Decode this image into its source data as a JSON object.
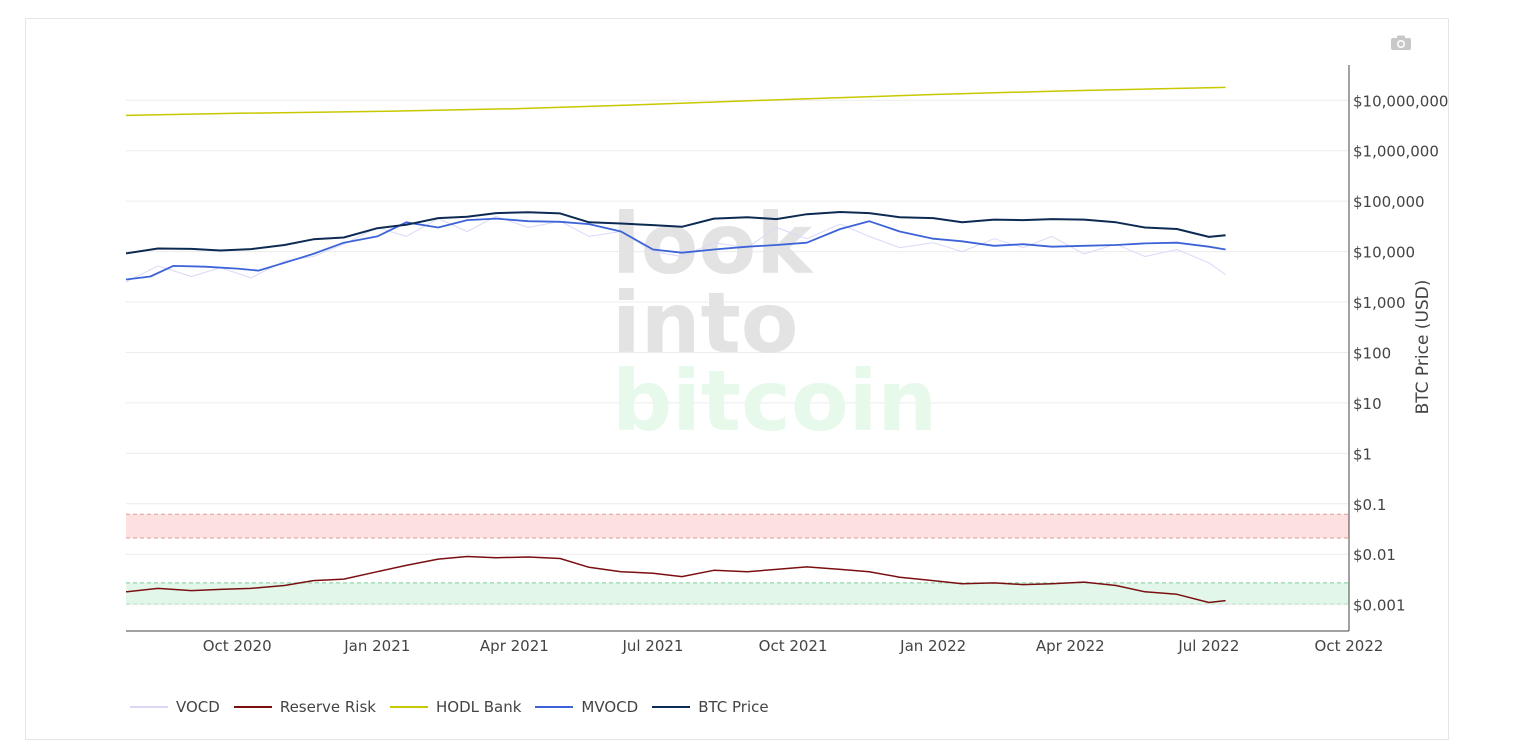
{
  "toolbar": {
    "camera_icon": "camera-icon"
  },
  "colors": {
    "vocd": "#d9d9f7",
    "reserve_risk": "#7a0f12",
    "reserve_risk_low": "#9a8a80",
    "hodl_bank": "#c8c800",
    "mvocd": "#3d63d8",
    "btc_price": "#0d2b52",
    "red_zone": "#fde1e1",
    "green_zone": "#e2f7ea",
    "watermark_grey": "#e3e3e3",
    "watermark_green": "#e6f9ea"
  },
  "watermark": {
    "line1": "look",
    "line2": "into",
    "line3": "bitcoin"
  },
  "chart_data": {
    "type": "line",
    "ylabel": "BTC Price (USD)",
    "yscale": "log",
    "ylim": [
      0.0003,
      50000000
    ],
    "y_ticks": [
      {
        "value": 10000000,
        "label": "$10,000,000"
      },
      {
        "value": 1000000,
        "label": "$1,000,000"
      },
      {
        "value": 100000,
        "label": "$100,000"
      },
      {
        "value": 10000,
        "label": "$10,000"
      },
      {
        "value": 1000,
        "label": "$1,000"
      },
      {
        "value": 100,
        "label": "$100"
      },
      {
        "value": 10,
        "label": "$10"
      },
      {
        "value": 1,
        "label": "$1"
      },
      {
        "value": 0.1,
        "label": "$0.1"
      },
      {
        "value": 0.01,
        "label": "$0.01"
      },
      {
        "value": 0.001,
        "label": "$0.001"
      }
    ],
    "x_ticks": [
      {
        "date": "2020-10-01",
        "label": "Oct 2020"
      },
      {
        "date": "2021-01-01",
        "label": "Jan 2021"
      },
      {
        "date": "2021-04-01",
        "label": "Apr 2021"
      },
      {
        "date": "2021-07-01",
        "label": "Jul 2021"
      },
      {
        "date": "2021-10-01",
        "label": "Oct 2021"
      },
      {
        "date": "2022-01-01",
        "label": "Jan 2022"
      },
      {
        "date": "2022-04-01",
        "label": "Apr 2022"
      },
      {
        "date": "2022-07-01",
        "label": "Jul 2022"
      },
      {
        "date": "2022-10-01",
        "label": "Oct 2022"
      }
    ],
    "xlim": [
      "2020-07-20",
      "2022-10-01"
    ],
    "zones": [
      {
        "name": "red",
        "y_from": 0.021,
        "y_to": 0.062
      },
      {
        "name": "green",
        "y_from": 0.00102,
        "y_to": 0.0027
      }
    ],
    "series": [
      {
        "name": "VOCD",
        "x": [
          "2020-07-20",
          "2020-08-10",
          "2020-09-01",
          "2020-09-20",
          "2020-10-10",
          "2020-11-01",
          "2020-11-20",
          "2020-12-10",
          "2021-01-01",
          "2021-01-20",
          "2021-02-10",
          "2021-03-01",
          "2021-03-20",
          "2021-04-10",
          "2021-05-01",
          "2021-05-20",
          "2021-06-10",
          "2021-07-01",
          "2021-07-20",
          "2021-08-10",
          "2021-09-01",
          "2021-09-20",
          "2021-10-10",
          "2021-11-01",
          "2021-11-20",
          "2021-12-10",
          "2022-01-01",
          "2022-01-20",
          "2022-02-10",
          "2022-03-01",
          "2022-03-20",
          "2022-04-10",
          "2022-05-01",
          "2022-05-20",
          "2022-06-10",
          "2022-07-01",
          "2022-07-12"
        ],
        "y": [
          2500,
          5200,
          3200,
          4800,
          3000,
          6500,
          8000,
          14000,
          30000,
          20000,
          45000,
          25000,
          50000,
          30000,
          40000,
          20000,
          25000,
          10000,
          8000,
          15000,
          12000,
          30000,
          18000,
          35000,
          20000,
          12000,
          15000,
          10000,
          18000,
          12000,
          20000,
          9000,
          14000,
          8000,
          11000,
          6000,
          3500
        ]
      },
      {
        "name": "Reserve Risk",
        "x": [
          "2020-07-20",
          "2020-08-10",
          "2020-09-01",
          "2020-09-20",
          "2020-10-10",
          "2020-11-01",
          "2020-11-20",
          "2020-12-10",
          "2021-01-01",
          "2021-01-20",
          "2021-02-10",
          "2021-03-01",
          "2021-03-20",
          "2021-04-10",
          "2021-05-01",
          "2021-05-20",
          "2021-06-10",
          "2021-07-01",
          "2021-07-20",
          "2021-08-10",
          "2021-09-01",
          "2021-09-20",
          "2021-10-10",
          "2021-11-01",
          "2021-11-20",
          "2021-12-10",
          "2022-01-01",
          "2022-01-20",
          "2022-02-10",
          "2022-03-01",
          "2022-03-20",
          "2022-04-10",
          "2022-05-01",
          "2022-05-20",
          "2022-06-10",
          "2022-07-01",
          "2022-07-12"
        ],
        "y": [
          0.0018,
          0.0021,
          0.0019,
          0.002,
          0.0021,
          0.0024,
          0.003,
          0.0032,
          0.0045,
          0.006,
          0.008,
          0.009,
          0.0085,
          0.0088,
          0.0082,
          0.0055,
          0.0045,
          0.0042,
          0.0036,
          0.0048,
          0.0045,
          0.005,
          0.0056,
          0.005,
          0.0045,
          0.0035,
          0.003,
          0.0026,
          0.0027,
          0.0025,
          0.0026,
          0.0028,
          0.0024,
          0.0018,
          0.0016,
          0.0011,
          0.0012
        ]
      },
      {
        "name": "HODL Bank",
        "x": [
          "2020-07-20",
          "2020-10-01",
          "2021-01-01",
          "2021-04-01",
          "2021-07-01",
          "2021-10-01",
          "2022-01-01",
          "2022-04-01",
          "2022-07-12"
        ],
        "y": [
          5000000,
          5500000,
          6000000,
          6800000,
          8300000,
          10500000,
          13000000,
          15500000,
          18000000
        ]
      },
      {
        "name": "MVOCD",
        "x": [
          "2020-07-20",
          "2020-08-05",
          "2020-08-20",
          "2020-09-10",
          "2020-10-01",
          "2020-10-15",
          "2020-11-01",
          "2020-11-20",
          "2020-12-10",
          "2021-01-01",
          "2021-01-20",
          "2021-02-10",
          "2021-03-01",
          "2021-03-20",
          "2021-04-10",
          "2021-05-01",
          "2021-05-20",
          "2021-06-10",
          "2021-07-01",
          "2021-07-20",
          "2021-08-10",
          "2021-09-01",
          "2021-09-20",
          "2021-10-10",
          "2021-11-01",
          "2021-11-20",
          "2021-12-10",
          "2022-01-01",
          "2022-01-20",
          "2022-02-10",
          "2022-03-01",
          "2022-03-20",
          "2022-04-10",
          "2022-05-01",
          "2022-05-20",
          "2022-06-10",
          "2022-07-01",
          "2022-07-12"
        ],
        "y": [
          2800,
          3200,
          5200,
          5000,
          4600,
          4200,
          6000,
          9000,
          15000,
          20000,
          38000,
          30000,
          42000,
          45000,
          40000,
          39000,
          35000,
          25000,
          11000,
          9500,
          11000,
          12500,
          13500,
          15000,
          28000,
          40000,
          25000,
          18000,
          16000,
          13000,
          14000,
          12500,
          13000,
          13500,
          14500,
          15000,
          12500,
          11000
        ]
      },
      {
        "name": "BTC Price",
        "x": [
          "2020-07-20",
          "2020-08-10",
          "2020-09-01",
          "2020-09-20",
          "2020-10-10",
          "2020-11-01",
          "2020-11-20",
          "2020-12-10",
          "2021-01-01",
          "2021-01-20",
          "2021-02-10",
          "2021-03-01",
          "2021-03-20",
          "2021-04-10",
          "2021-05-01",
          "2021-05-20",
          "2021-06-10",
          "2021-07-01",
          "2021-07-20",
          "2021-08-10",
          "2021-09-01",
          "2021-09-20",
          "2021-10-10",
          "2021-11-01",
          "2021-11-20",
          "2021-12-10",
          "2022-01-01",
          "2022-01-20",
          "2022-02-10",
          "2022-03-01",
          "2022-03-20",
          "2022-04-10",
          "2022-05-01",
          "2022-05-20",
          "2022-06-10",
          "2022-07-01",
          "2022-07-12"
        ],
        "y": [
          9200,
          11500,
          11300,
          10500,
          11200,
          13500,
          17500,
          19000,
          29000,
          34000,
          46000,
          49000,
          58000,
          60000,
          57000,
          38000,
          36000,
          33500,
          31000,
          45000,
          48000,
          44000,
          55000,
          61000,
          58000,
          48000,
          46000,
          38000,
          43000,
          42000,
          44000,
          43000,
          38000,
          30000,
          28000,
          19500,
          21000
        ]
      }
    ],
    "legend": [
      "VOCD",
      "Reserve Risk",
      "HODL Bank",
      "MVOCD",
      "BTC Price"
    ],
    "legend_position": "bottom-left",
    "grid": true
  }
}
